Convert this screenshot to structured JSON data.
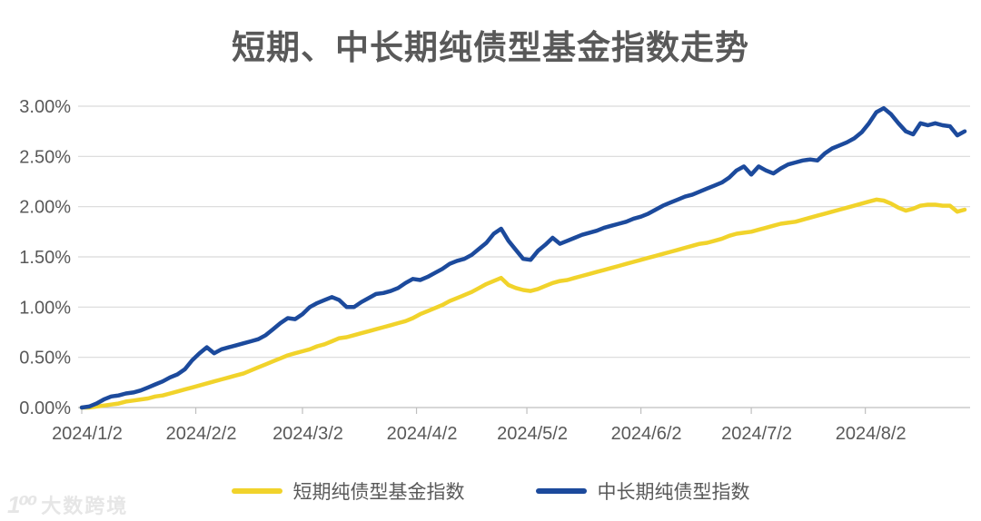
{
  "title": "短期、中长期纯债型基金指数走势",
  "watermark": {
    "logo": "1⁰⁰",
    "text": "大数跨境"
  },
  "legend": {
    "items": [
      {
        "label": "短期纯债型基金指数",
        "color": "#F1D32B"
      },
      {
        "label": "中长期纯债型指数",
        "color": "#1C4A9C"
      }
    ]
  },
  "colors": {
    "accent_yellow": "#F1D32B",
    "accent_navy": "#1C4A9C",
    "text": "#595959",
    "grid": "#D9D9D9",
    "axis": "#BFBFBF"
  },
  "chart_data": {
    "type": "line",
    "title": "短期、中长期纯债型基金指数走势",
    "unit": "%",
    "grid": "horizontal",
    "legend_position": "bottom",
    "ylim": [
      0,
      3.0
    ],
    "y_tick_values": [
      0,
      0.5,
      1.0,
      1.5,
      2.0,
      2.5,
      3.0
    ],
    "y_tick_labels": [
      "0.00%",
      "0.50%",
      "1.00%",
      "1.50%",
      "2.00%",
      "2.50%",
      "3.00%"
    ],
    "x_tick_labels": [
      "2024/1/2",
      "2024/2/2",
      "2024/3/2",
      "2024/4/2",
      "2024/5/2",
      "2024/6/2",
      "2024/7/2",
      "2024/8/2"
    ],
    "x_tick_days": [
      0,
      31,
      60,
      91,
      121,
      152,
      182,
      213
    ],
    "day_max": 240,
    "day_step": 2,
    "series": [
      {
        "name": "短期纯债型基金指数",
        "color": "#F1D32B",
        "values": [
          0.0,
          0.0,
          0.01,
          0.02,
          0.03,
          0.04,
          0.06,
          0.07,
          0.08,
          0.09,
          0.11,
          0.12,
          0.14,
          0.16,
          0.18,
          0.2,
          0.22,
          0.24,
          0.26,
          0.28,
          0.3,
          0.32,
          0.34,
          0.37,
          0.4,
          0.43,
          0.46,
          0.49,
          0.52,
          0.54,
          0.56,
          0.58,
          0.61,
          0.63,
          0.66,
          0.69,
          0.7,
          0.72,
          0.74,
          0.76,
          0.78,
          0.8,
          0.82,
          0.84,
          0.86,
          0.89,
          0.93,
          0.96,
          0.99,
          1.02,
          1.06,
          1.09,
          1.12,
          1.15,
          1.19,
          1.23,
          1.26,
          1.29,
          1.22,
          1.19,
          1.17,
          1.16,
          1.18,
          1.21,
          1.24,
          1.26,
          1.27,
          1.29,
          1.31,
          1.33,
          1.35,
          1.37,
          1.39,
          1.41,
          1.43,
          1.45,
          1.47,
          1.49,
          1.51,
          1.53,
          1.55,
          1.57,
          1.59,
          1.61,
          1.63,
          1.64,
          1.66,
          1.68,
          1.71,
          1.73,
          1.74,
          1.75,
          1.77,
          1.79,
          1.81,
          1.83,
          1.84,
          1.85,
          1.87,
          1.89,
          1.91,
          1.93,
          1.95,
          1.97,
          1.99,
          2.01,
          2.03,
          2.05,
          2.07,
          2.06,
          2.03,
          1.99,
          1.96,
          1.98,
          2.01,
          2.02,
          2.02,
          2.01,
          2.01,
          1.95,
          1.97
        ]
      },
      {
        "name": "中长期纯债型指数",
        "color": "#1C4A9C",
        "values": [
          0.0,
          0.01,
          0.04,
          0.08,
          0.11,
          0.12,
          0.14,
          0.15,
          0.17,
          0.2,
          0.23,
          0.26,
          0.3,
          0.33,
          0.38,
          0.47,
          0.54,
          0.6,
          0.54,
          0.58,
          0.6,
          0.62,
          0.64,
          0.66,
          0.68,
          0.72,
          0.78,
          0.84,
          0.89,
          0.88,
          0.93,
          1.0,
          1.04,
          1.07,
          1.1,
          1.07,
          1.0,
          1.0,
          1.05,
          1.09,
          1.13,
          1.14,
          1.16,
          1.19,
          1.24,
          1.28,
          1.27,
          1.3,
          1.34,
          1.38,
          1.43,
          1.46,
          1.48,
          1.52,
          1.58,
          1.64,
          1.73,
          1.78,
          1.66,
          1.57,
          1.48,
          1.47,
          1.56,
          1.62,
          1.69,
          1.63,
          1.66,
          1.69,
          1.72,
          1.74,
          1.76,
          1.79,
          1.81,
          1.83,
          1.85,
          1.88,
          1.9,
          1.93,
          1.97,
          2.01,
          2.04,
          2.07,
          2.1,
          2.12,
          2.15,
          2.18,
          2.21,
          2.24,
          2.29,
          2.36,
          2.4,
          2.32,
          2.4,
          2.36,
          2.33,
          2.38,
          2.42,
          2.44,
          2.46,
          2.47,
          2.46,
          2.53,
          2.58,
          2.61,
          2.64,
          2.68,
          2.74,
          2.83,
          2.94,
          2.98,
          2.92,
          2.83,
          2.75,
          2.72,
          2.83,
          2.81,
          2.83,
          2.81,
          2.8,
          2.71,
          2.75
        ]
      }
    ]
  }
}
